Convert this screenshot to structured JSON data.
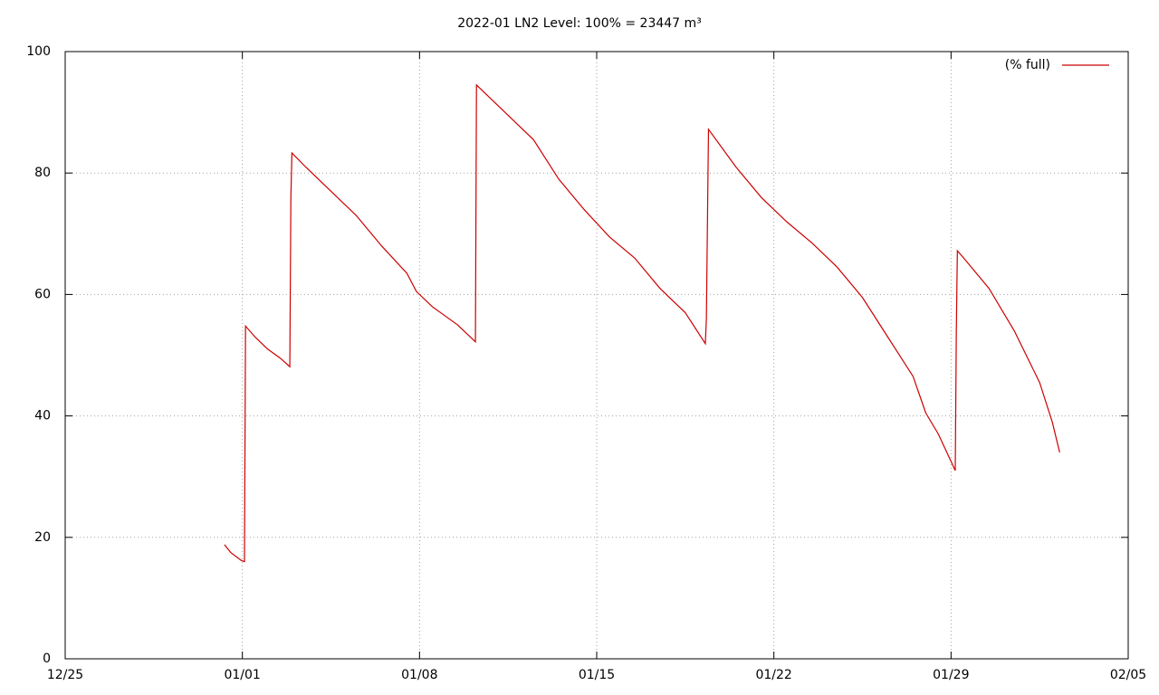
{
  "chart_data": {
    "type": "line",
    "title": "2022-01 LN2 Level: 100% = 23447 m³",
    "x": [
      "2021-12-31 07:00",
      "2021-12-31 13:00",
      "2021-12-31 23:00",
      "2022-01-01 02:00",
      "2022-01-01 03:00",
      "2022-01-01 12:00",
      "2022-01-02 00:00",
      "2022-01-02 12:00",
      "2022-01-02 21:00",
      "2022-01-02 22:00",
      "2022-01-02 23:00",
      "2022-01-03 12:00",
      "2022-01-04 12:00",
      "2022-01-05 12:00",
      "2022-01-06 12:00",
      "2022-01-07 12:00",
      "2022-01-07 21:00",
      "2022-01-08 12:00",
      "2022-01-09 12:00",
      "2022-01-10 05:00",
      "2022-01-10 06:00",
      "2022-01-10 12:00",
      "2022-01-11 12:00",
      "2022-01-12 12:00",
      "2022-01-13 12:00",
      "2022-01-14 12:00",
      "2022-01-15 12:00",
      "2022-01-16 12:00",
      "2022-01-17 12:00",
      "2022-01-18 12:00",
      "2022-01-19 07:00",
      "2022-01-19 08:00",
      "2022-01-19 10:00",
      "2022-01-20 12:00",
      "2022-01-21 12:00",
      "2022-01-22 12:00",
      "2022-01-23 12:00",
      "2022-01-24 12:00",
      "2022-01-25 12:00",
      "2022-01-26 12:00",
      "2022-01-27 12:00",
      "2022-01-28 00:00",
      "2022-01-28 12:00",
      "2022-01-29 04:00",
      "2022-01-29 05:00",
      "2022-01-29 06:00",
      "2022-01-29 12:00",
      "2022-01-30 12:00",
      "2022-01-31 12:00",
      "2022-02-01 12:00",
      "2022-02-02 00:00",
      "2022-02-02 07:00"
    ],
    "series": [
      {
        "name": "(% full)",
        "color": "#cc0000",
        "values": [
          18.8,
          17.5,
          16.2,
          16.0,
          54.8,
          53.0,
          51.0,
          49.5,
          48.1,
          76.0,
          83.3,
          81.0,
          77.0,
          73.0,
          68.0,
          63.5,
          60.5,
          58.0,
          55.0,
          52.2,
          94.5,
          93.5,
          89.5,
          85.5,
          79.0,
          74.0,
          69.5,
          66.0,
          61.0,
          57.0,
          51.9,
          56.0,
          87.2,
          81.0,
          76.0,
          72.0,
          68.5,
          64.5,
          59.5,
          53.0,
          46.5,
          40.5,
          37.0,
          31.0,
          53.8,
          67.2,
          66.0,
          61.0,
          54.0,
          45.5,
          39.0,
          34.0
        ]
      }
    ],
    "xlim": [
      "2021-12-25 00:00",
      "2022-02-05 00:00"
    ],
    "xticks": [
      {
        "value": "2021-12-25 00:00",
        "label": "12/25"
      },
      {
        "value": "2022-01-01 00:00",
        "label": "01/01"
      },
      {
        "value": "2022-01-08 00:00",
        "label": "01/08"
      },
      {
        "value": "2022-01-15 00:00",
        "label": "01/15"
      },
      {
        "value": "2022-01-22 00:00",
        "label": "01/22"
      },
      {
        "value": "2022-01-29 00:00",
        "label": "01/29"
      },
      {
        "value": "2022-02-05 00:00",
        "label": "02/05"
      }
    ],
    "ylim": [
      0,
      100
    ],
    "yticks": [
      0,
      20,
      40,
      60,
      80,
      100
    ],
    "grid": true,
    "legend": "top-right"
  }
}
